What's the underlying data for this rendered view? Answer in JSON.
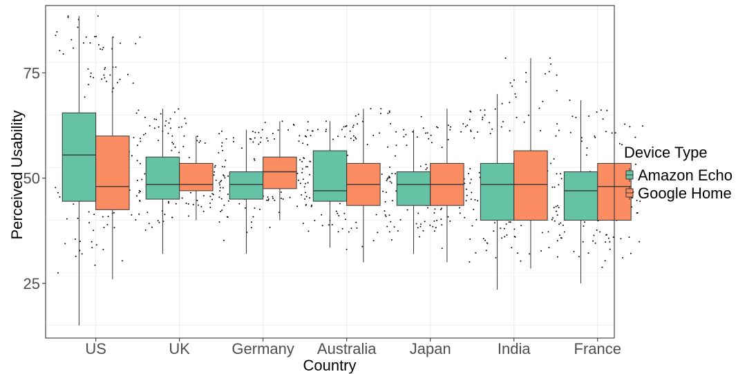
{
  "chart_data": {
    "type": "box",
    "xlabel": "Country",
    "ylabel": "Perceived Usability",
    "categories": [
      "US",
      "UK",
      "Germany",
      "Australia",
      "Japan",
      "India",
      "France"
    ],
    "ylim": [
      12,
      91
    ],
    "y_ticks": [
      25,
      50,
      75
    ],
    "grid": true,
    "legend": {
      "title": "Device Type",
      "position": "right",
      "entries": [
        "Amazon Echo",
        "Google Home"
      ]
    },
    "colors": {
      "Amazon Echo": "#66c2a5",
      "Google Home": "#fc8d62"
    },
    "series": [
      {
        "name": "Amazon Echo",
        "boxes": [
          {
            "category": "US",
            "min": 15,
            "q1": 44.5,
            "median": 55.5,
            "q3": 65.5,
            "max": 88.5
          },
          {
            "category": "UK",
            "min": 32,
            "q1": 45,
            "median": 48.5,
            "q3": 55,
            "max": 66.5
          },
          {
            "category": "Germany",
            "min": 32,
            "q1": 45,
            "median": 48.5,
            "q3": 51.5,
            "max": 61.5
          },
          {
            "category": "Australia",
            "min": 33.5,
            "q1": 44.5,
            "median": 47,
            "q3": 56.5,
            "max": 63.5
          },
          {
            "category": "Japan",
            "min": 32,
            "q1": 43.5,
            "median": 48.5,
            "q3": 51.5,
            "max": 61.5
          },
          {
            "category": "India",
            "min": 23.5,
            "q1": 40,
            "median": 48.5,
            "q3": 53.5,
            "max": 70
          },
          {
            "category": "France",
            "min": 25,
            "q1": 40,
            "median": 47,
            "q3": 51.5,
            "max": 68.5
          }
        ]
      },
      {
        "name": "Google Home",
        "boxes": [
          {
            "category": "US",
            "min": 26,
            "q1": 42.5,
            "median": 48,
            "q3": 60,
            "max": 83.5
          },
          {
            "category": "UK",
            "min": 40,
            "q1": 47,
            "median": 48.5,
            "q3": 53.5,
            "max": 60
          },
          {
            "category": "Germany",
            "min": 40,
            "q1": 47.5,
            "median": 51.5,
            "q3": 55,
            "max": 63.5
          },
          {
            "category": "Australia",
            "min": 30,
            "q1": 43.5,
            "median": 48.5,
            "q3": 53.5,
            "max": 66.5
          },
          {
            "category": "Japan",
            "min": 30,
            "q1": 43.5,
            "median": 48.5,
            "q3": 53.5,
            "max": 66.5
          },
          {
            "category": "India",
            "min": 28.5,
            "q1": 40,
            "median": 48.5,
            "q3": 56.5,
            "max": 78.5
          },
          {
            "category": "France",
            "min": 26.5,
            "q1": 40,
            "median": 48,
            "q3": 53.5,
            "max": 65
          }
        ]
      }
    ]
  }
}
